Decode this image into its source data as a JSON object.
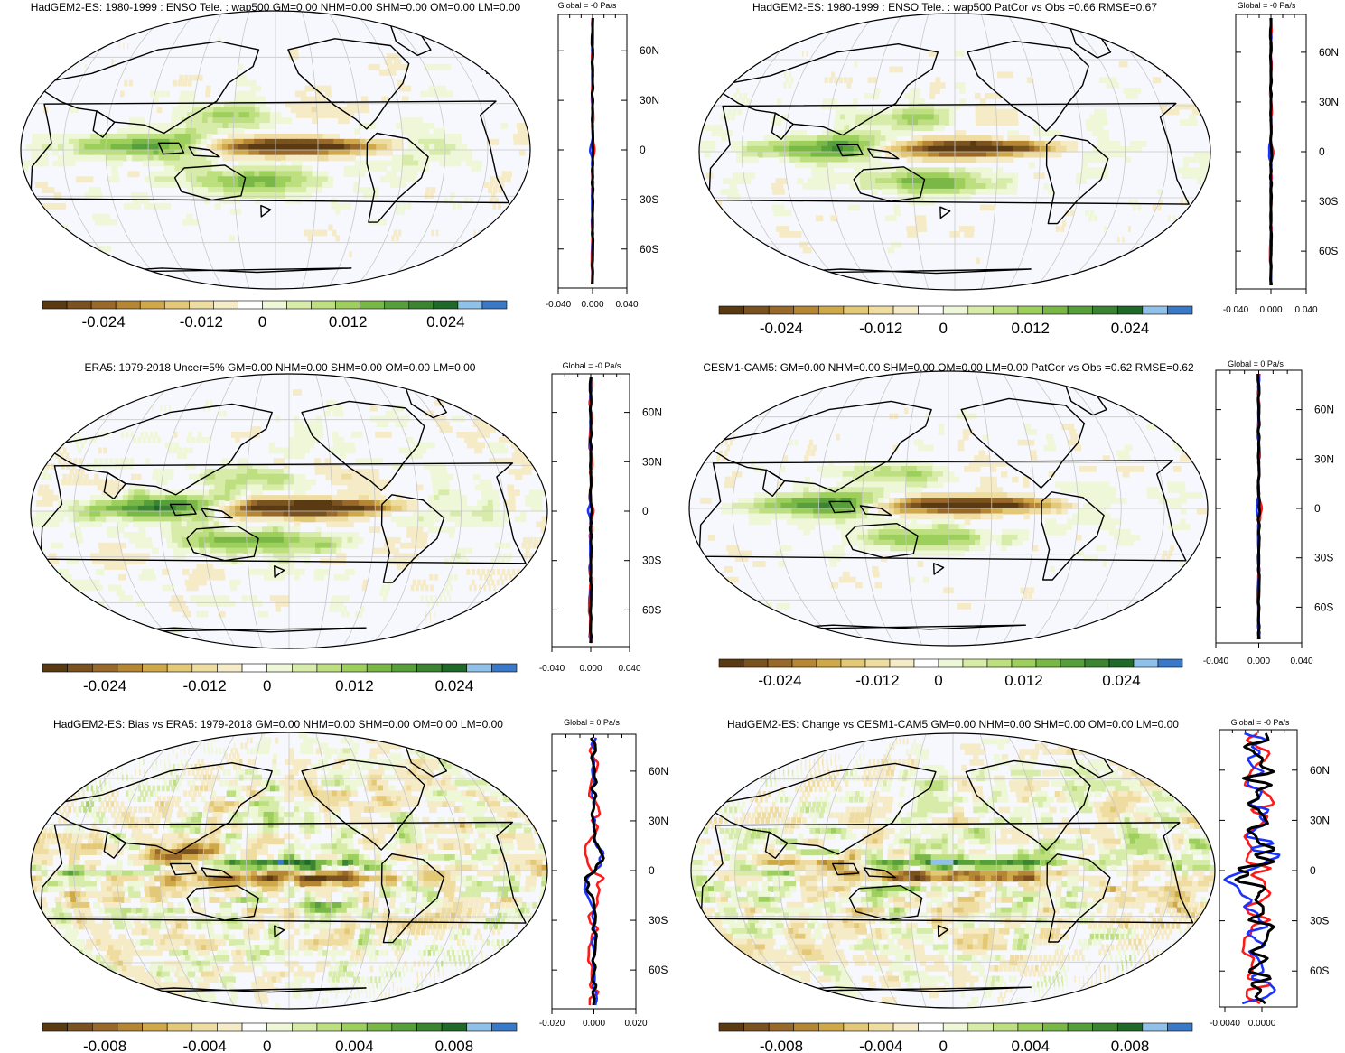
{
  "figure": {
    "palette": [
      "#5a3a12",
      "#7a5220",
      "#99692b",
      "#b58735",
      "#cfa949",
      "#e3c877",
      "#efdca0",
      "#f6ebc7",
      "#ffffff",
      "#eef7d8",
      "#d8ecaa",
      "#bddf80",
      "#9ccf5b",
      "#79b847",
      "#569f3a",
      "#3b8432",
      "#206a29",
      "#8fc1e9",
      "#3979c8"
    ],
    "ocean_color": "#f7f8fd",
    "line_colors": {
      "red": "#ff1a1a",
      "blue": "#1a33ff",
      "black": "#000000"
    },
    "panels": [
      {
        "id": "p1",
        "title": "HadGEM2-ES: 1980-1999 : ENSO Tele. : wap500 GM=0.00 NHM=0.00 SHM=0.00 OM=0.00 LM=0.00",
        "global_label": "Global = -0 Pa/s",
        "lat_labels": [
          "60N",
          "30N",
          "0",
          "30S",
          "60S"
        ],
        "profile_xticks": [
          "-0.040",
          "0.000",
          "0.040"
        ],
        "colorbar_labels": [
          "-0.024",
          "-0.012",
          "0",
          "0.012",
          "0.024"
        ],
        "pattern": "enso",
        "profile_amp": {
          "red": 0.03,
          "blue": 0.02,
          "black": 0.02
        }
      },
      {
        "id": "p2",
        "title": "HadGEM2-ES: 1980-1999 : ENSO Tele. : wap500 PatCor vs Obs =0.66 RMSE=0.67",
        "global_label": "Global = -0 Pa/s",
        "lat_labels": [
          "60N",
          "30N",
          "0",
          "30S",
          "60S"
        ],
        "profile_xticks": [
          "-0.040",
          "0.000",
          "0.040"
        ],
        "colorbar_labels": [
          "-0.024",
          "-0.012",
          "0",
          "0.012",
          "0.024"
        ],
        "pattern": "enso",
        "profile_amp": {
          "red": 0.03,
          "blue": 0.02,
          "black": 0.02
        }
      },
      {
        "id": "p3",
        "title": "ERA5: 1979-2018 Uncer=5% GM=0.00 NHM=0.00 SHM=0.00 OM=0.00 LM=0.00",
        "global_label": "Global = -0 Pa/s",
        "lat_labels": [
          "60N",
          "30N",
          "0",
          "30S",
          "60S"
        ],
        "profile_xticks": [
          "-0.040",
          "0.000",
          "0.040"
        ],
        "colorbar_labels": [
          "-0.024",
          "-0.012",
          "0",
          "0.012",
          "0.024"
        ],
        "pattern": "enso_obs",
        "profile_amp": {
          "red": 0.05,
          "blue": 0.02,
          "black": 0.02
        }
      },
      {
        "id": "p4",
        "title": "CESM1-CAM5: GM=0.00 NHM=0.00 SHM=0.00 OM=0.00 LM=0.00 PatCor vs Obs =0.62 RMSE=0.62",
        "global_label": "Global = 0 Pa/s",
        "lat_labels": [
          "60N",
          "30N",
          "0",
          "30S",
          "60S"
        ],
        "profile_xticks": [
          "-0.040",
          "0.000",
          "0.040"
        ],
        "colorbar_labels": [
          "-0.024",
          "-0.012",
          "0",
          "0.012",
          "0.024"
        ],
        "pattern": "enso",
        "profile_amp": {
          "red": 0.03,
          "blue": 0.02,
          "black": 0.02
        }
      },
      {
        "id": "p5",
        "title": "HadGEM2-ES: Bias vs ERA5: 1979-2018 GM=0.00 NHM=0.00 SHM=0.00 OM=0.00 LM=0.00",
        "global_label": "Global = 0 Pa/s",
        "lat_labels": [
          "60N",
          "30N",
          "0",
          "30S",
          "60S"
        ],
        "profile_xticks": [
          "-0.020",
          "0.000",
          "0.020"
        ],
        "colorbar_labels": [
          "-0.008",
          "-0.004",
          "0",
          "0.004",
          "0.008"
        ],
        "pattern": "diff",
        "profile_amp": {
          "red": 0.15,
          "blue": 0.08,
          "black": 0.08
        }
      },
      {
        "id": "p6",
        "title": "HadGEM2-ES: Change vs CESM1-CAM5 GM=0.00 NHM=0.00 SHM=0.00 OM=0.00 LM=0.00",
        "global_label": "Global = -0 Pa/s",
        "lat_labels": [
          "60N",
          "30N",
          "0",
          "30S",
          "60S"
        ],
        "profile_xticks": [
          "-0.0040",
          "0.0000"
        ],
        "colorbar_labels": [
          "-0.008",
          "-0.004",
          "0",
          "0.004",
          "0.008"
        ],
        "pattern": "diff2",
        "profile_amp": {
          "red": 0.45,
          "blue": 0.5,
          "black": 0.5
        }
      }
    ]
  },
  "chart_data": [
    {
      "type": "heatmap",
      "title": "HadGEM2-ES: 1980-1999 : ENSO Tele. : wap500 GM=0.00 NHM=0.00 SHM=0.00 OM=0.00 LM=0.00",
      "variable": "wap500",
      "units": "Pa/s",
      "colorbar_ticks": [
        -0.024,
        -0.012,
        0,
        0.012,
        0.024
      ],
      "profile_xlim": [
        -0.04,
        0.04
      ],
      "profile_yticks": [
        "60N",
        "30N",
        "0",
        "30S",
        "60S"
      ]
    },
    {
      "type": "heatmap",
      "title": "HadGEM2-ES: 1980-1999 : ENSO Tele. : wap500 PatCor vs Obs =0.66 RMSE=0.67",
      "pattern_correlation": 0.66,
      "rmse": 0.67,
      "colorbar_ticks": [
        -0.024,
        -0.012,
        0,
        0.012,
        0.024
      ],
      "profile_xlim": [
        -0.04,
        0.04
      ]
    },
    {
      "type": "heatmap",
      "title": "ERA5: 1979-2018 Uncer=5% GM=0.00 NHM=0.00 SHM=0.00 OM=0.00 LM=0.00",
      "colorbar_ticks": [
        -0.024,
        -0.012,
        0,
        0.012,
        0.024
      ],
      "profile_xlim": [
        -0.04,
        0.04
      ]
    },
    {
      "type": "heatmap",
      "title": "CESM1-CAM5: GM=0.00 NHM=0.00 SHM=0.00 OM=0.00 LM=0.00 PatCor vs Obs =0.62 RMSE=0.62",
      "pattern_correlation": 0.62,
      "rmse": 0.62,
      "colorbar_ticks": [
        -0.024,
        -0.012,
        0,
        0.012,
        0.024
      ],
      "profile_xlim": [
        -0.04,
        0.04
      ]
    },
    {
      "type": "heatmap",
      "title": "HadGEM2-ES: Bias vs ERA5: 1979-2018 GM=0.00 NHM=0.00 SHM=0.00 OM=0.00 LM=0.00",
      "colorbar_ticks": [
        -0.008,
        -0.004,
        0,
        0.004,
        0.008
      ],
      "profile_xlim": [
        -0.02,
        0.02
      ]
    },
    {
      "type": "heatmap",
      "title": "HadGEM2-ES: Change vs CESM1-CAM5 GM=0.00 NHM=0.00 SHM=0.00 OM=0.00 LM=0.00",
      "colorbar_ticks": [
        -0.008,
        -0.004,
        0,
        0.004,
        0.008
      ],
      "profile_xlim": [
        -0.004,
        0.004
      ]
    }
  ]
}
